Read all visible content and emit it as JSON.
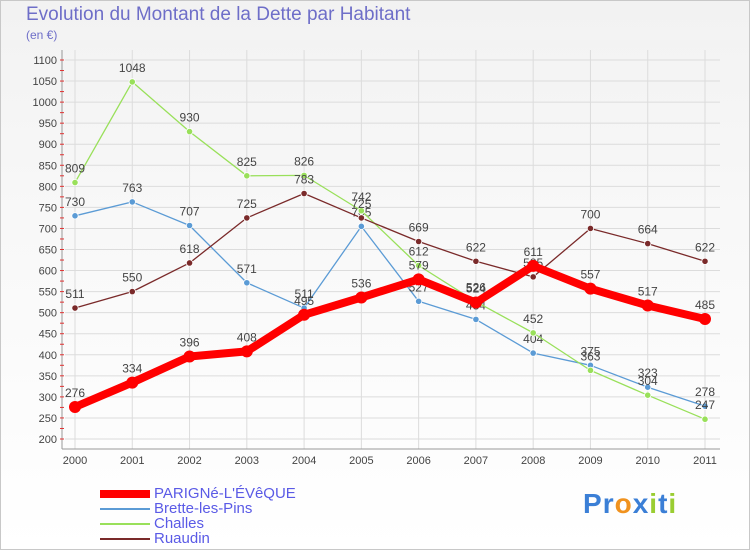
{
  "chart_data": {
    "type": "line",
    "title": "Evolution du Montant de la Dette par Habitant",
    "ylabel": "(en €)",
    "x": [
      "2000",
      "2001",
      "2002",
      "2003",
      "2004",
      "2005",
      "2006",
      "2007",
      "2008",
      "2009",
      "2010",
      "2011"
    ],
    "ylim": [
      200,
      1100
    ],
    "yticks": [
      200,
      250,
      300,
      350,
      400,
      450,
      500,
      550,
      600,
      650,
      700,
      750,
      800,
      850,
      900,
      950,
      1000,
      1050,
      1100
    ],
    "grid": true,
    "legend_position": "bottom-left",
    "series": [
      {
        "name": "PARIGNé-L'ÉVêQUE",
        "color": "#ff0000",
        "values": [
          276,
          334,
          396,
          408,
          495,
          536,
          579,
          524,
          611,
          557,
          517,
          485
        ]
      },
      {
        "name": "Brette-les-Pins",
        "color": "#5b9bd5",
        "values": [
          730,
          763,
          707,
          571,
          511,
          705,
          527,
          484,
          404,
          375,
          323,
          278
        ]
      },
      {
        "name": "Challes",
        "color": "#99e05a",
        "values": [
          809,
          1048,
          930,
          825,
          826,
          742,
          612,
          526,
          452,
          363,
          304,
          247
        ]
      },
      {
        "name": "Ruaudin",
        "color": "#7a2a2a",
        "values": [
          511,
          550,
          618,
          725,
          783,
          725,
          669,
          622,
          585,
          700,
          664,
          622
        ]
      }
    ]
  },
  "logo": {
    "letters": [
      "P",
      "r",
      "o",
      "x",
      "i",
      "t",
      "i"
    ],
    "colors": [
      "#3b7fd6",
      "#3b7fd6",
      "#f0921e",
      "#3b7fd6",
      "#9acd32",
      "#3b7fd6",
      "#9acd32"
    ]
  }
}
